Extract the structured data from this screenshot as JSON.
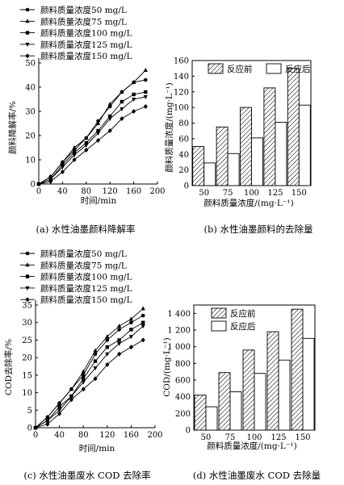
{
  "chart_data": [
    {
      "id": "a",
      "type": "line",
      "caption": "(a) 水性油墨颜料降解率",
      "xlabel": "时间/min",
      "ylabel": "颜料降解率/%",
      "xlim": [
        0,
        200
      ],
      "ylim": [
        0,
        50
      ],
      "xticks": [
        0,
        40,
        80,
        120,
        160,
        200
      ],
      "yticks": [
        0,
        10,
        20,
        30,
        40,
        50
      ],
      "legend_position": "top-left",
      "x": [
        0,
        20,
        40,
        60,
        80,
        100,
        120,
        140,
        160,
        180
      ],
      "series": [
        {
          "name": "颜料质量浓度50 mg/L",
          "marker": "circle",
          "values": [
            0,
            3,
            9,
            14,
            19,
            26,
            32,
            38,
            42,
            43
          ]
        },
        {
          "name": "颜料质量浓度75 mg/L",
          "marker": "triangle-up",
          "values": [
            0,
            3,
            9,
            15,
            19,
            25,
            33,
            38,
            42,
            47
          ]
        },
        {
          "name": "颜料质量浓度100 mg/L",
          "marker": "square",
          "values": [
            0,
            2,
            8,
            13,
            17,
            22,
            28,
            34,
            37,
            38
          ]
        },
        {
          "name": "颜料质量浓度125 mg/L",
          "marker": "triangle-down",
          "values": [
            0,
            2,
            7,
            12,
            16,
            21,
            27,
            31,
            35,
            36
          ]
        },
        {
          "name": "颜料质量浓度150 mg/L",
          "marker": "diamond",
          "values": [
            0,
            1,
            5,
            10,
            14,
            18,
            22,
            27,
            30,
            32
          ]
        }
      ]
    },
    {
      "id": "b",
      "type": "bar",
      "caption": "(b) 水性油墨颜料的去除量",
      "xlabel": "颜料质量浓度/(mg·L⁻¹)",
      "ylabel": "颜料质量浓度/(mg·L⁻¹)",
      "categories": [
        "50",
        "75",
        "100",
        "125",
        "150"
      ],
      "ylim": [
        0,
        160
      ],
      "yticks": [
        0,
        20,
        40,
        60,
        80,
        100,
        120,
        140,
        160
      ],
      "legend_position": "top",
      "series": [
        {
          "name": "反应前",
          "fill": "hatched",
          "values": [
            50,
            75,
            100,
            125,
            150
          ]
        },
        {
          "name": "反应后",
          "fill": "white",
          "values": [
            29,
            41,
            61,
            81,
            103
          ]
        }
      ]
    },
    {
      "id": "c",
      "type": "line",
      "caption": "(c) 水性油墨废水 COD 去除率",
      "xlabel": "时间/min",
      "ylabel": "COD去除率/%",
      "xlim": [
        0,
        200
      ],
      "ylim": [
        0,
        35
      ],
      "xticks": [
        0,
        40,
        80,
        120,
        160,
        200
      ],
      "yticks": [
        0,
        5,
        10,
        15,
        20,
        25,
        30,
        35
      ],
      "legend_position": "top-left",
      "x": [
        0,
        20,
        40,
        60,
        80,
        100,
        120,
        140,
        160,
        180
      ],
      "series": [
        {
          "name": "颜料质量浓度50 mg/L",
          "marker": "circle",
          "values": [
            0,
            3,
            7,
            11,
            15,
            21,
            25,
            28,
            30,
            32
          ]
        },
        {
          "name": "颜料质量浓度75 mg/L",
          "marker": "triangle-up",
          "values": [
            0,
            3,
            7,
            11,
            16,
            22,
            26,
            29,
            31,
            34
          ]
        },
        {
          "name": "颜料质量浓度100 mg/L",
          "marker": "square",
          "values": [
            0,
            2,
            6,
            9,
            14,
            19,
            23,
            25,
            28,
            30
          ]
        },
        {
          "name": "颜料质量浓度125 mg/L",
          "marker": "triangle-down",
          "values": [
            0,
            2,
            5,
            9,
            13,
            17,
            21,
            24,
            26,
            29
          ]
        },
        {
          "name": "颜料质量浓度150 mg/L",
          "marker": "diamond",
          "values": [
            0,
            1,
            4,
            8,
            11,
            14,
            18,
            21,
            23,
            25
          ]
        }
      ]
    },
    {
      "id": "d",
      "type": "bar",
      "caption": "(d) 水性油墨废水 COD 去除量",
      "xlabel": "颜料质量浓度/(mg·L⁻¹)",
      "ylabel": "COD/(mg·L⁻¹)",
      "categories": [
        "50",
        "75",
        "100",
        "125",
        "150"
      ],
      "ylim": [
        0,
        1500
      ],
      "yticks": [
        0,
        200,
        400,
        600,
        800,
        1000,
        1200,
        1400
      ],
      "ytick_labels": [
        "0",
        "200",
        "400",
        "600",
        "800",
        "1 000",
        "1 200",
        "1 400"
      ],
      "legend_position": "top-left",
      "series": [
        {
          "name": "反应前",
          "fill": "hatched",
          "values": [
            420,
            690,
            960,
            1180,
            1450
          ]
        },
        {
          "name": "反应后",
          "fill": "white",
          "values": [
            280,
            460,
            680,
            840,
            1100
          ]
        }
      ]
    }
  ]
}
